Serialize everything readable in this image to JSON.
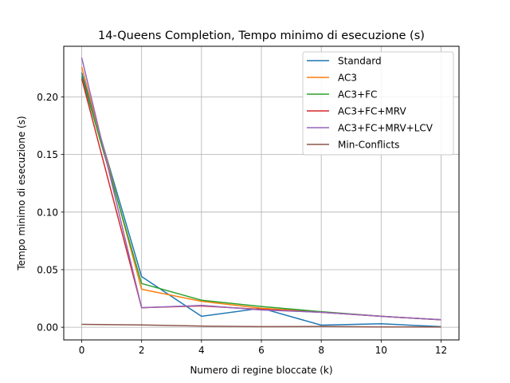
{
  "chart_data": {
    "type": "line",
    "title": "14-Queens Completion, Tempo minimo di esecuzione (s)",
    "xlabel": "Numero di regine bloccate (k)",
    "ylabel": "Tempo minimo di esecuzione (s)",
    "x": [
      0,
      2,
      4,
      6,
      8,
      10,
      12
    ],
    "xlim": [
      -0.6,
      12.6
    ],
    "ylim": [
      -0.011,
      0.244
    ],
    "xticks": [
      0,
      2,
      4,
      6,
      8,
      10,
      12
    ],
    "xtick_labels": [
      "0",
      "2",
      "4",
      "6",
      "8",
      "10",
      "12"
    ],
    "yticks": [
      0.0,
      0.05,
      0.1,
      0.15,
      0.2
    ],
    "ytick_labels": [
      "0.00",
      "0.05",
      "0.10",
      "0.15",
      "0.20"
    ],
    "grid": true,
    "legend_position": "top-right",
    "series": [
      {
        "name": "Standard",
        "color": "#1f77b4",
        "values": [
          0.221,
          0.044,
          0.0095,
          0.0165,
          0.0018,
          0.003,
          0.0005
        ]
      },
      {
        "name": "AC3",
        "color": "#ff7f0e",
        "values": [
          0.226,
          0.033,
          0.0225,
          0.0165,
          0.013,
          0.0095,
          0.0065
        ]
      },
      {
        "name": "AC3+FC",
        "color": "#2ca02c",
        "values": [
          0.218,
          0.038,
          0.0235,
          0.018,
          0.0135,
          0.0095,
          0.0065
        ]
      },
      {
        "name": "AC3+FC+MRV",
        "color": "#d62728",
        "values": [
          0.216,
          0.017,
          0.0185,
          0.0155,
          0.013,
          0.0095,
          0.0065
        ]
      },
      {
        "name": "AC3+FC+MRV+LCV",
        "color": "#9467bd",
        "values": [
          0.234,
          0.017,
          0.019,
          0.015,
          0.013,
          0.0095,
          0.0065
        ]
      },
      {
        "name": "Min-Conflicts",
        "color": "#8c564b",
        "values": [
          0.0025,
          0.002,
          0.001,
          0.0005,
          0.0007,
          0.0003,
          0.0002
        ]
      }
    ]
  }
}
